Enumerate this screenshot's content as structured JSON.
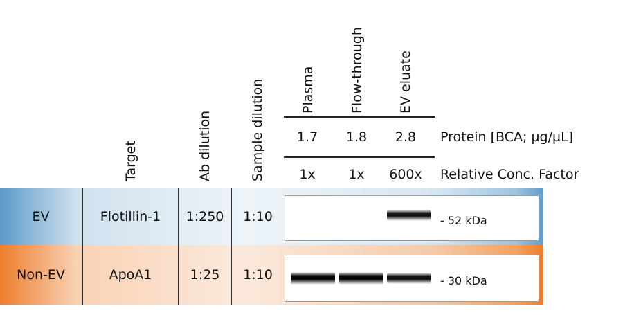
{
  "columns": {
    "target": "Target",
    "ab_dilution": "Ab dilution",
    "sample_dilution": "Sample dilution"
  },
  "samples": [
    {
      "name": "Plasma",
      "protein": "1.7",
      "factor": "1x"
    },
    {
      "name": "Flow-through",
      "protein": "1.8",
      "factor": "1x"
    },
    {
      "name": "EV eluate",
      "protein": "2.8",
      "factor": "600x"
    }
  ],
  "protein_label": "Protein [BCA; µg/µL]",
  "factor_label": "Relative Conc. Factor",
  "rows": [
    {
      "group": "EV",
      "target": "Flotillin-1",
      "ab_dilution": "1:250",
      "sample_dilution": "1:10",
      "marker": "- 52 kDa",
      "color": "#5b9ac9",
      "band_intensity": [
        0,
        0,
        0.75
      ]
    },
    {
      "group": "Non-EV",
      "target": "ApoA1",
      "ab_dilution": "1:25",
      "sample_dilution": "1:10",
      "marker": "- 30 kDa",
      "color": "#ee7d2c",
      "band_intensity": [
        1.0,
        1.0,
        0.8
      ]
    }
  ]
}
